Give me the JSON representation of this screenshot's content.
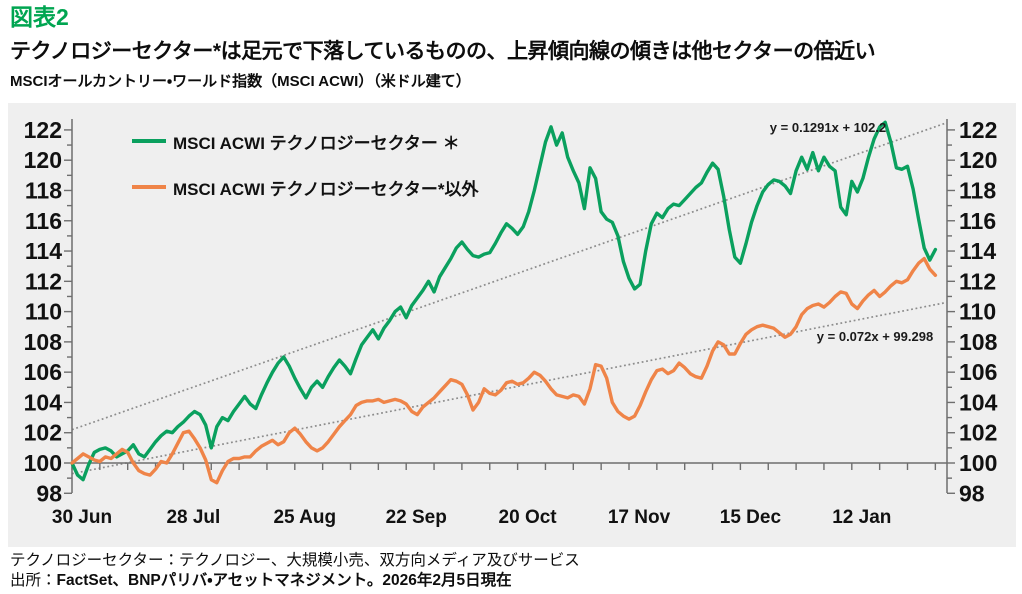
{
  "header": {
    "figure_label": "図表2",
    "title": "テクノロジーセクター*は足元で下落しているものの、上昇傾向線の傾きは他セクターの倍近い",
    "subtitle": "MSCIオールカントリー・ワールド指数（MSCI ACWI）（米ドル建て）"
  },
  "footnote": {
    "line1": "テクノロジーセクター：テクノロジー、大規模小売、双方向メディア及びサービス",
    "line2_prefix": "出所：",
    "line2_bold": "FactSet、BNPパリバ・アセットマネジメント。2026年2月5日現在"
  },
  "chart_data": {
    "type": "line",
    "title": "MSCI ACWI Technology vs non-Technology (USD, indexed 100 = 30 Jun)",
    "xlabel": "",
    "ylabel": "",
    "ylim": [
      98,
      122.7
    ],
    "y_ticks": [
      98,
      100,
      102,
      104,
      106,
      108,
      110,
      112,
      114,
      116,
      118,
      120,
      122
    ],
    "x_tick_labels": [
      "30 Jun",
      "28 Jul",
      "25 Aug",
      "22 Sep",
      "20 Oct",
      "17 Nov",
      "15 Dec",
      "12 Jan"
    ],
    "x_axis_cross_value": 100,
    "grid": false,
    "plot_bg": "#efefef",
    "axis_color": "#6e6e6e",
    "legend_position": "top-left",
    "series": [
      {
        "name": "MSCI ACWI テクノロジーセクター ＊",
        "color": "#0aa05e",
        "values": [
          100,
          99.2,
          98.9,
          99.9,
          100.7,
          100.9,
          101,
          100.8,
          100.4,
          100.6,
          100.8,
          101.2,
          100.6,
          100.4,
          100.9,
          101.4,
          101.8,
          102.1,
          102,
          102.4,
          102.7,
          103.1,
          103.4,
          103.2,
          102.5,
          101,
          102.4,
          103,
          102.8,
          103.4,
          103.9,
          104.4,
          103.9,
          103.6,
          104.5,
          105.3,
          106,
          106.6,
          107,
          106.4,
          105.6,
          104.9,
          104.3,
          105,
          105.4,
          105,
          105.7,
          106.3,
          106.8,
          106.4,
          105.9,
          106.9,
          107.8,
          108.3,
          108.8,
          108.2,
          108.9,
          109.4,
          110,
          110.3,
          109.6,
          110.4,
          110.9,
          111.4,
          112,
          111.3,
          112.3,
          112.9,
          113.5,
          114.2,
          114.6,
          114.1,
          113.7,
          113.6,
          113.8,
          113.9,
          114.5,
          115.2,
          115.8,
          115.5,
          115.1,
          115.6,
          116.6,
          118,
          119.6,
          121.2,
          122.2,
          121,
          121.8,
          120.2,
          119.3,
          118.5,
          116.8,
          119.5,
          118.8,
          116.6,
          116.1,
          115.9,
          115,
          113.3,
          112.2,
          111.5,
          111.8,
          114,
          115.8,
          116.5,
          116.2,
          116.8,
          117.1,
          117,
          117.4,
          117.8,
          118.2,
          118.5,
          119.2,
          119.8,
          119.4,
          117.6,
          115.4,
          113.6,
          113.2,
          114.5,
          115.9,
          117,
          117.9,
          118.4,
          118.7,
          118.6,
          118.3,
          117.8,
          119.3,
          120.2,
          119.4,
          120.5,
          119.3,
          120.2,
          119.6,
          119.3,
          116.9,
          116.4,
          118.6,
          117.9,
          118.8,
          120.2,
          121.4,
          122.2,
          122.5,
          121.2,
          119.5,
          119.4,
          119.6,
          118.1,
          116.1,
          114.2,
          113.4,
          114.1
        ]
      },
      {
        "name": "MSCI ACWI テクノロジーセクター*以外",
        "color": "#ef8448",
        "values": [
          100,
          100.3,
          100.6,
          100.4,
          100.2,
          100.1,
          100.4,
          100.3,
          100.6,
          100.9,
          100.7,
          100,
          99.5,
          99.3,
          99.2,
          99.6,
          100.1,
          100,
          100.6,
          101.3,
          102,
          102.1,
          101.6,
          101,
          100.2,
          98.9,
          98.7,
          99.5,
          100.1,
          100.3,
          100.3,
          100.4,
          100.4,
          100.8,
          101.1,
          101.3,
          101.5,
          101.2,
          101.4,
          102,
          102.3,
          101.9,
          101.4,
          101,
          100.8,
          101,
          101.4,
          101.9,
          102.4,
          102.8,
          103.2,
          103.8,
          104,
          104.1,
          104.1,
          104.2,
          104,
          104.1,
          104.2,
          104.1,
          103.9,
          103.4,
          103.2,
          103.7,
          104,
          104.3,
          104.7,
          105.1,
          105.5,
          105.4,
          105.2,
          104.5,
          103.5,
          104,
          104.9,
          104.6,
          104.5,
          104.8,
          105.3,
          105.4,
          105.2,
          105.3,
          105.6,
          106,
          105.8,
          105.4,
          104.9,
          104.5,
          104.4,
          104.3,
          104.5,
          104.4,
          103.9,
          104.9,
          106.5,
          106.4,
          105.6,
          104,
          103.4,
          103.1,
          102.9,
          103.1,
          103.8,
          104.7,
          105.5,
          106.1,
          106.2,
          105.9,
          106.1,
          106.6,
          106.3,
          105.9,
          105.7,
          105.6,
          106.4,
          107.4,
          108,
          107.8,
          107.2,
          107.2,
          107.9,
          108.5,
          108.8,
          109,
          109.1,
          109,
          108.9,
          108.6,
          108.3,
          108.5,
          109,
          109.8,
          110.2,
          110.4,
          110.5,
          110.3,
          110.6,
          111,
          111.3,
          111.2,
          110.5,
          110.2,
          110.7,
          111.1,
          111.4,
          111,
          111.3,
          111.7,
          112,
          111.9,
          112.1,
          112.7,
          113.2,
          113.5,
          112.8,
          112.4
        ]
      }
    ],
    "trendlines": [
      {
        "label": "y = 0.1291x + 102.2",
        "slope": 0.1291,
        "intercept": 102.2,
        "color": "#8c8c8c",
        "style": "dotted"
      },
      {
        "label": "y = 0.072x + 99.298",
        "slope": 0.072,
        "intercept": 99.298,
        "color": "#8c8c8c",
        "style": "dotted"
      }
    ]
  }
}
